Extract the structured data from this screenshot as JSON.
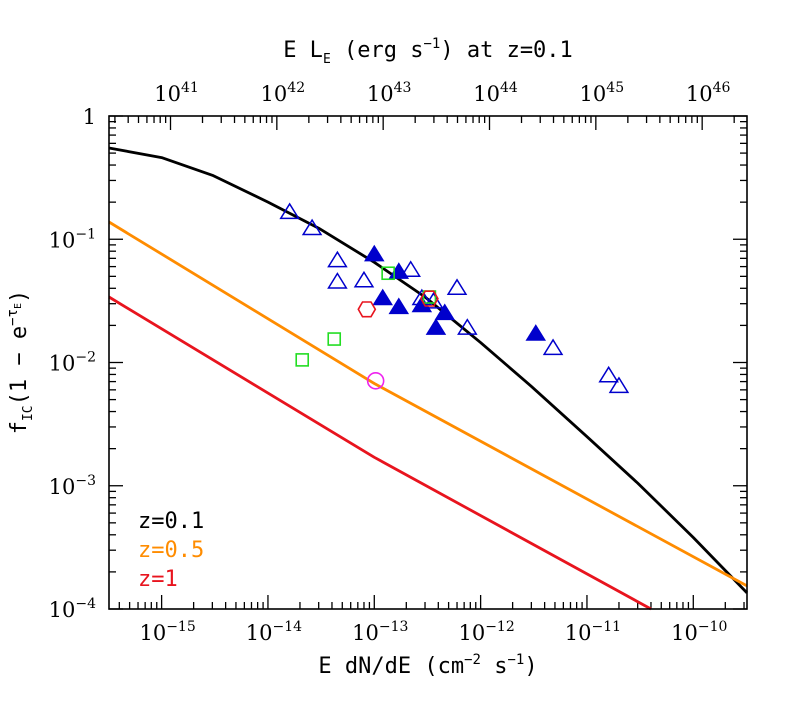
{
  "chart_data": {
    "type": "line",
    "xlabel": "E dN/dE (cm⁻² s⁻¹)",
    "ylabel": "f_IC(1 − e^−τ_E)",
    "top_xlabel": "E L_E (erg s⁻¹) at z=0.1",
    "xlim": [
      3.2e-16,
      3.2e-10
    ],
    "ylim": [
      0.0001,
      1
    ],
    "top_xlim": [
      2.64e+40,
      2.64e+46
    ],
    "xscale": "log",
    "yscale": "log",
    "x_ticklabels": [
      {
        "value": 1e-15,
        "mant": "10",
        "exp": "−15"
      },
      {
        "value": 1e-14,
        "mant": "10",
        "exp": "−14"
      },
      {
        "value": 1e-13,
        "mant": "10",
        "exp": "−13"
      },
      {
        "value": 1e-12,
        "mant": "10",
        "exp": "−12"
      },
      {
        "value": 1e-11,
        "mant": "10",
        "exp": "−11"
      },
      {
        "value": 1e-10,
        "mant": "10",
        "exp": "−10"
      }
    ],
    "y_ticklabels": [
      {
        "value": 1,
        "mant": "1",
        "exp": ""
      },
      {
        "value": 0.1,
        "mant": "10",
        "exp": "−1"
      },
      {
        "value": 0.01,
        "mant": "10",
        "exp": "−2"
      },
      {
        "value": 0.001,
        "mant": "10",
        "exp": "−3"
      },
      {
        "value": 0.0001,
        "mant": "10",
        "exp": "−4"
      }
    ],
    "top_ticklabels": [
      {
        "value": 1e+41,
        "mant": "10",
        "exp": "41"
      },
      {
        "value": 1e+42,
        "mant": "10",
        "exp": "42"
      },
      {
        "value": 1e+43,
        "mant": "10",
        "exp": "43"
      },
      {
        "value": 1e+44,
        "mant": "10",
        "exp": "44"
      },
      {
        "value": 1e+45,
        "mant": "10",
        "exp": "45"
      },
      {
        "value": 1e+46,
        "mant": "10",
        "exp": "46"
      }
    ],
    "series": [
      {
        "name": "z=0.1",
        "color": "#000000",
        "x": [
          3.2e-16,
          1e-15,
          3e-15,
          1e-14,
          3e-14,
          1e-13,
          3e-13,
          1e-12,
          3e-12,
          1e-11,
          3e-11,
          1e-10,
          3.2e-10
        ],
        "y": [
          0.55,
          0.46,
          0.33,
          0.2,
          0.123,
          0.065,
          0.034,
          0.0145,
          0.0064,
          0.0025,
          0.00105,
          0.00038,
          0.000135
        ]
      },
      {
        "name": "z=0.5",
        "color": "#ff8c00",
        "x": [
          3.2e-16,
          1e-13,
          3.2e-10
        ],
        "y": [
          0.138,
          0.00675,
          0.000154
        ]
      },
      {
        "name": "z=1",
        "color": "#e8141e",
        "x": [
          3.2e-16,
          1e-13,
          4e-11
        ],
        "y": [
          0.034,
          0.0017,
          0.0001
        ]
      }
    ],
    "markers": [
      {
        "shape": "triangle-open",
        "color": "#0000cc",
        "points": [
          [
            1.6e-14,
            0.165
          ],
          [
            2.6e-14,
            0.122
          ],
          [
            4.5e-14,
            0.067
          ],
          [
            4.5e-14,
            0.045
          ],
          [
            8e-14,
            0.046
          ],
          [
            2.2e-13,
            0.056
          ],
          [
            2.8e-13,
            0.033
          ],
          [
            3.6e-13,
            0.031
          ],
          [
            6e-13,
            0.04
          ],
          [
            7.5e-13,
            0.019
          ],
          [
            4.8e-12,
            0.013
          ],
          [
            1.6e-11,
            0.0078
          ],
          [
            2e-11,
            0.0064
          ]
        ]
      },
      {
        "shape": "triangle-filled",
        "color": "#0000cc",
        "points": [
          [
            1e-13,
            0.075
          ],
          [
            1.2e-13,
            0.033
          ],
          [
            1.7e-13,
            0.054
          ],
          [
            1.7e-13,
            0.028
          ],
          [
            2.8e-13,
            0.029
          ],
          [
            3.8e-13,
            0.019
          ],
          [
            4.6e-13,
            0.025
          ],
          [
            3.3e-12,
            0.017
          ]
        ]
      },
      {
        "shape": "square-open",
        "color": "#22dd22",
        "points": [
          [
            2.1e-14,
            0.0105
          ],
          [
            4.2e-14,
            0.0155
          ],
          [
            1.35e-13,
            0.053
          ],
          [
            3.3e-13,
            0.034
          ]
        ]
      },
      {
        "shape": "hexagon-open",
        "color": "#e8141e",
        "points": [
          [
            8.5e-14,
            0.027
          ],
          [
            3.3e-13,
            0.033
          ]
        ]
      },
      {
        "shape": "circle-open",
        "color": "#ee22ee",
        "points": [
          [
            1.03e-13,
            0.0071
          ]
        ]
      }
    ],
    "legend": {
      "position": "bottom-left",
      "entries": [
        {
          "label": "z=0.1",
          "color": "#000000"
        },
        {
          "label": "z=0.5",
          "color": "#ff8c00"
        },
        {
          "label": "z=1",
          "color": "#e8141e"
        }
      ]
    }
  }
}
